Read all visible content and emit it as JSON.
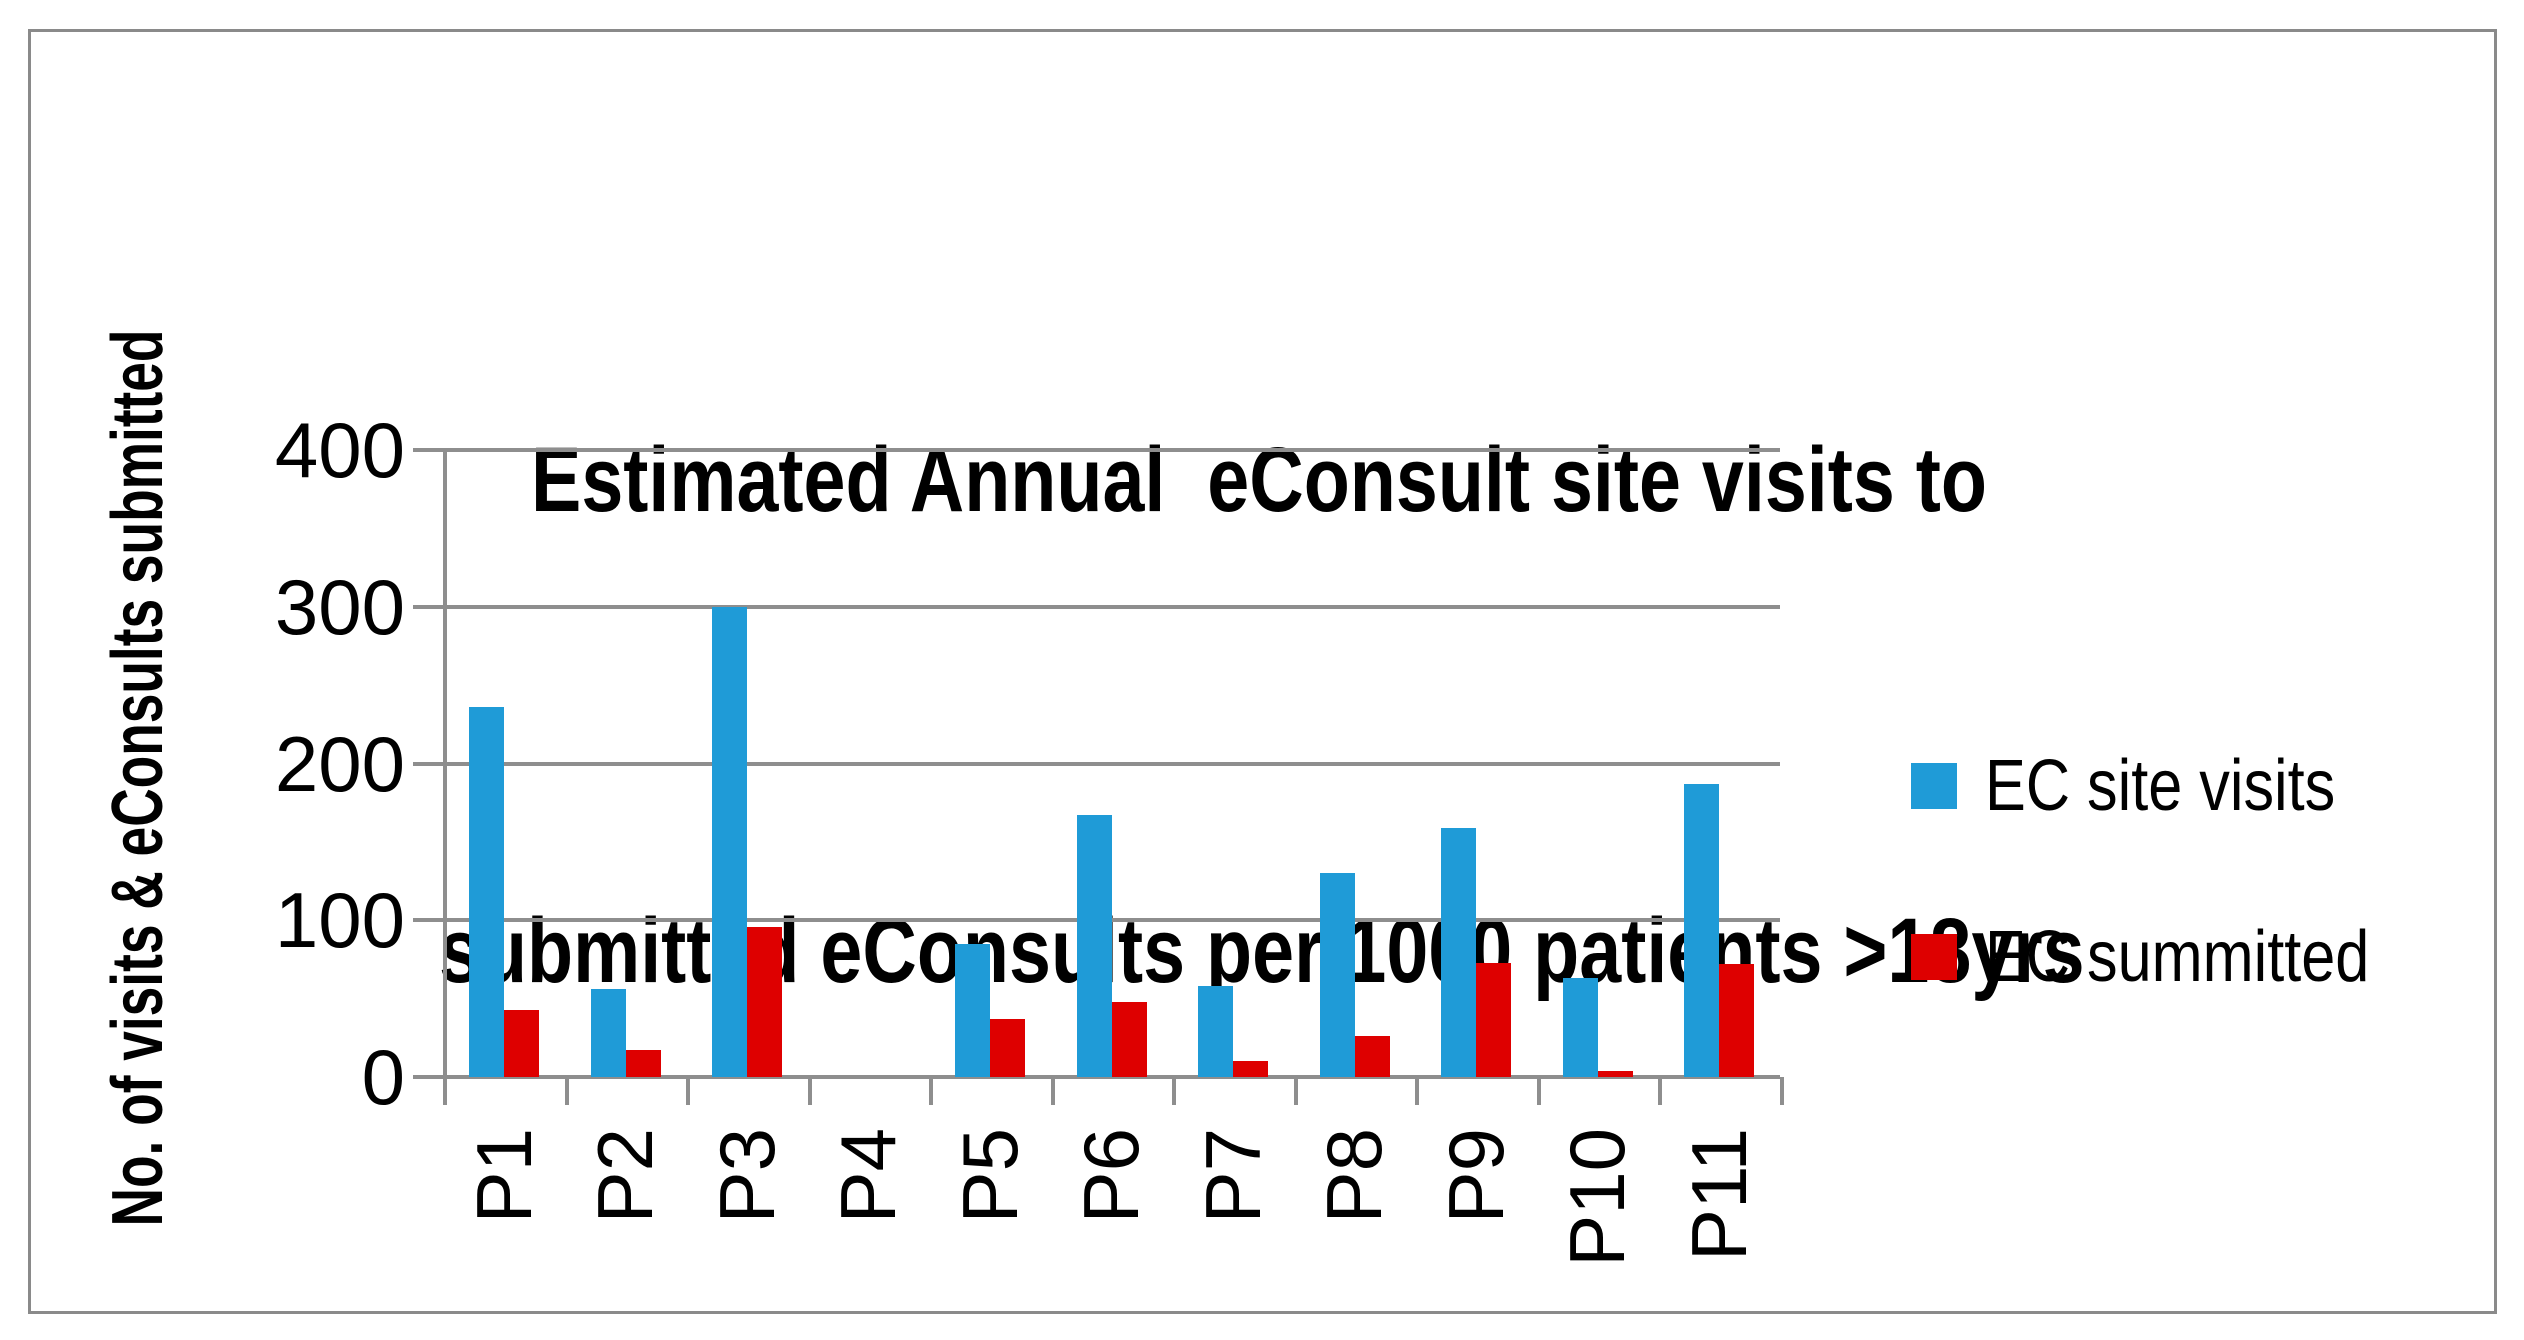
{
  "chart_data": {
    "type": "bar",
    "title_line1": "Estimated Annual  eConsult site visits to",
    "title_line2": "submitted eConsults per 1000 patients >18yrs",
    "ylabel": "No. of visits & eConsults submitted",
    "xlabel": "",
    "categories": [
      "P1",
      "P2",
      "P3",
      "P4",
      "P5",
      "P6",
      "P7",
      "P8",
      "P9",
      "P10",
      "P11"
    ],
    "series": [
      {
        "name": "EC site visits",
        "color": "#1f9bd7",
        "values": [
          236,
          56,
          300,
          0,
          85,
          167,
          58,
          130,
          159,
          63,
          187
        ]
      },
      {
        "name": "EC summitted",
        "color": "#de0000",
        "values": [
          43,
          17,
          96,
          0,
          37,
          48,
          10,
          26,
          73,
          4,
          72
        ]
      }
    ],
    "ylim": [
      0,
      400
    ],
    "ytick_interval": 100,
    "yticks": [
      "0",
      "100",
      "200",
      "300",
      "400"
    ],
    "grid": true,
    "legend_position": "right",
    "bar_gap": "none within pair"
  },
  "colors": {
    "grid": "#8e8e8e",
    "axis": "#8e8e8e",
    "frame_border": "#8a8a8a",
    "text": "#000000",
    "background": "#ffffff"
  }
}
